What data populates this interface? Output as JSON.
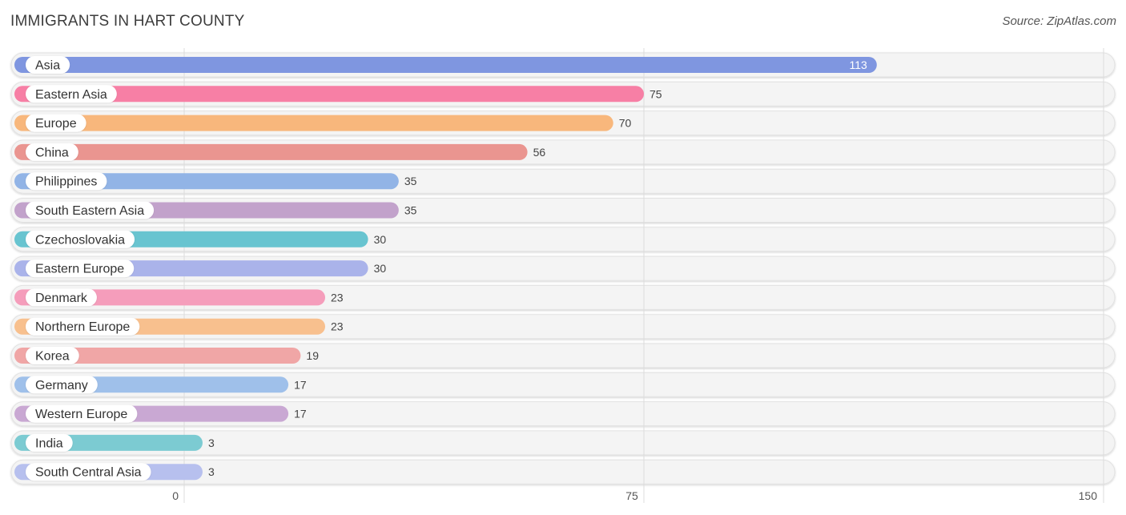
{
  "header": {
    "title": "IMMIGRANTS IN HART COUNTY",
    "source": "Source: ZipAtlas.com"
  },
  "chart_data": {
    "type": "bar",
    "orientation": "horizontal",
    "title": "IMMIGRANTS IN HART COUNTY",
    "categories": [
      "Asia",
      "Eastern Asia",
      "Europe",
      "China",
      "Philippines",
      "South Eastern Asia",
      "Czechoslovakia",
      "Eastern Europe",
      "Denmark",
      "Northern Europe",
      "Korea",
      "Germany",
      "Western Europe",
      "India",
      "South Central Asia"
    ],
    "values": [
      113,
      75,
      70,
      56,
      35,
      35,
      30,
      30,
      23,
      23,
      19,
      17,
      17,
      3,
      3
    ],
    "value_labels": [
      "113",
      "75",
      "70",
      "56",
      "35",
      "35",
      "30",
      "30",
      "23",
      "23",
      "19",
      "17",
      "17",
      "3",
      "3"
    ],
    "colors": [
      "#7f96e0",
      "#f77fa5",
      "#f8b77c",
      "#ea9590",
      "#92b4e6",
      "#c2a2cb",
      "#68c4d0",
      "#aab3ea",
      "#f59dbb",
      "#f8c08e",
      "#f0a6a6",
      "#9fc0ea",
      "#c9a8d3",
      "#7ccbd2",
      "#b7c0ee"
    ],
    "xlim": [
      0,
      150
    ],
    "xticks": [
      0,
      75,
      150
    ],
    "xtick_labels": [
      "0",
      "75",
      "150"
    ],
    "grid": true,
    "xlabel": "",
    "ylabel": ""
  }
}
